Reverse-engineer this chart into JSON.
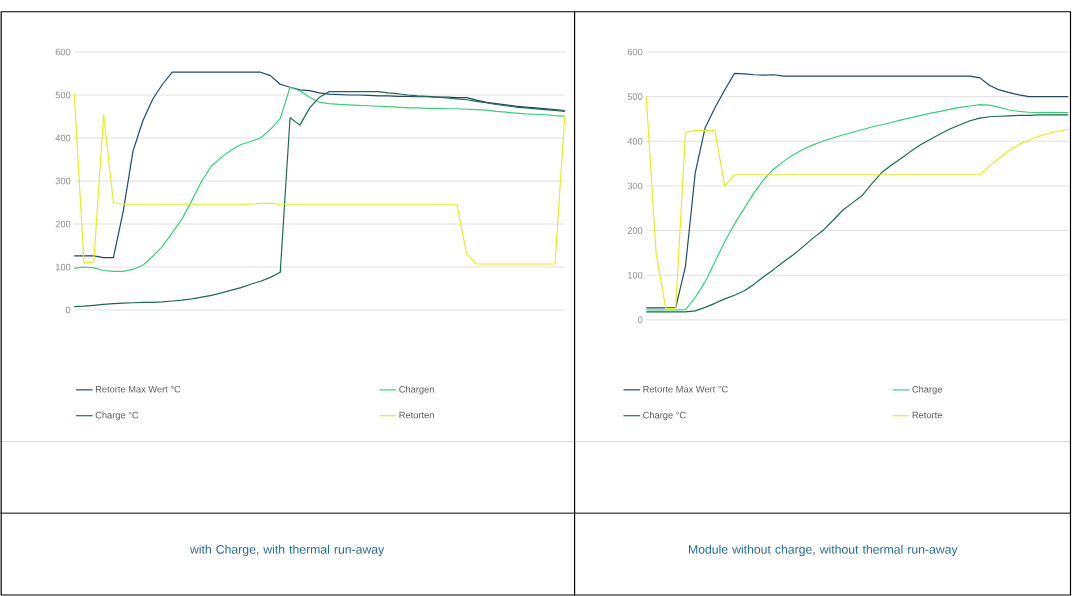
{
  "chart_data": [
    {
      "type": "line",
      "categories": [
        null,
        null,
        null,
        null,
        null,
        null,
        null,
        null,
        null,
        null,
        null,
        null,
        null,
        null,
        null,
        null,
        null,
        null,
        null,
        null,
        null,
        null,
        null,
        null,
        null,
        null,
        null,
        null,
        null,
        null,
        null,
        null,
        null,
        null,
        null,
        null,
        null,
        null,
        null,
        null,
        null,
        null,
        null,
        null,
        null,
        null,
        null,
        null,
        null,
        null,
        null
      ],
      "series": [
        {
          "name": "Retorte Max Wert °C",
          "color": "#1c4966",
          "values": [
            126,
            126,
            126,
            122,
            122,
            230,
            370,
            440,
            490,
            525,
            553,
            553,
            553,
            553,
            553,
            553,
            553,
            553,
            553,
            553,
            545,
            525,
            518,
            512,
            510,
            505,
            502,
            501,
            500,
            500,
            499,
            498,
            498,
            497,
            497,
            496,
            496,
            495,
            495,
            494,
            494,
            488,
            483,
            480,
            477,
            474,
            472,
            470,
            468,
            466,
            464
          ]
        },
        {
          "name": "Chargen",
          "color": "#34d17a",
          "values": [
            97,
            100,
            98,
            92,
            90,
            90,
            95,
            104,
            125,
            148,
            180,
            212,
            255,
            300,
            335,
            355,
            372,
            385,
            392,
            400,
            420,
            445,
            518,
            510,
            495,
            483,
            480,
            478,
            477,
            476,
            475,
            474,
            473,
            472,
            470,
            470,
            469,
            469,
            468,
            468,
            467,
            466,
            465,
            462,
            460,
            458,
            456,
            455,
            454,
            452,
            451
          ]
        },
        {
          "name": "Charge °C",
          "color": "#1a6b4b",
          "values": [
            8,
            9,
            11,
            13,
            15,
            16,
            17,
            18,
            18,
            19,
            21,
            23,
            26,
            30,
            34,
            40,
            46,
            52,
            60,
            67,
            76,
            88,
            447,
            430,
            470,
            495,
            508,
            508,
            508,
            508,
            508,
            508,
            505,
            503,
            500,
            498,
            497,
            495,
            493,
            491,
            489,
            485,
            482,
            478,
            475,
            472,
            470,
            468,
            466,
            464,
            462
          ]
        },
        {
          "name": "Retorten",
          "color": "#e4ef1c",
          "values": [
            505,
            109,
            112,
            455,
            250,
            246,
            246,
            246,
            246,
            246,
            246,
            246,
            246,
            246,
            246,
            246,
            246,
            246,
            246,
            248,
            248,
            246,
            246,
            246,
            246,
            246,
            246,
            246,
            246,
            246,
            246,
            246,
            246,
            246,
            246,
            246,
            246,
            246,
            246,
            246,
            130,
            107,
            107,
            107,
            107,
            107,
            107,
            107,
            107,
            107,
            451
          ]
        }
      ],
      "ylim": [
        0,
        600
      ],
      "yticks": [
        0,
        100,
        200,
        300,
        400,
        500,
        600
      ],
      "grid": "y",
      "legend": "bottom",
      "tick_labels": "y",
      "annotations": [
        "with Charge, with thermal run-away"
      ]
    },
    {
      "type": "line",
      "categories": [
        null,
        null,
        null,
        null,
        null,
        null,
        null,
        null,
        null,
        null,
        null,
        null,
        null,
        null,
        null,
        null,
        null,
        null,
        null,
        null,
        null,
        null,
        null,
        null,
        null,
        null,
        null,
        null,
        null,
        null,
        null,
        null,
        null,
        null,
        null,
        null,
        null,
        null,
        null,
        null,
        null,
        null,
        null,
        null
      ],
      "series": [
        {
          "name": "Retorte Max Wert °C",
          "color": "#1c4966",
          "values": [
            27,
            27,
            27,
            27,
            120,
            330,
            430,
            475,
            515,
            552,
            551,
            549,
            548,
            549,
            546,
            546,
            546,
            546,
            546,
            546,
            546,
            546,
            546,
            546,
            546,
            546,
            546,
            546,
            546,
            546,
            546,
            546,
            546,
            546,
            542,
            525,
            515,
            509,
            504,
            500,
            500,
            500,
            500,
            500
          ]
        },
        {
          "name": "Charge",
          "color": "#34d17a",
          "values": [
            22,
            22,
            22,
            22,
            23,
            50,
            85,
            130,
            175,
            215,
            250,
            285,
            315,
            338,
            355,
            370,
            382,
            392,
            400,
            407,
            414,
            420,
            426,
            432,
            437,
            442,
            448,
            453,
            458,
            463,
            467,
            472,
            476,
            479,
            482,
            481,
            476,
            470,
            467,
            465,
            464,
            464,
            464,
            464
          ]
        },
        {
          "name": "Charge °C",
          "color": "#1a6b4b",
          "values": [
            18,
            18,
            18,
            18,
            18,
            20,
            28,
            37,
            47,
            55,
            65,
            80,
            97,
            113,
            130,
            146,
            164,
            183,
            200,
            222,
            245,
            262,
            278,
            305,
            330,
            347,
            362,
            378,
            393,
            405,
            417,
            428,
            437,
            446,
            452,
            455,
            456,
            457,
            458,
            458,
            459,
            459,
            459,
            459
          ]
        },
        {
          "name": "Retorte",
          "color": "#e4ef1c",
          "values": [
            501,
            150,
            25,
            25,
            420,
            424,
            424,
            424,
            300,
            325,
            325,
            325,
            325,
            325,
            325,
            325,
            325,
            325,
            325,
            325,
            325,
            325,
            325,
            325,
            325,
            325,
            325,
            325,
            325,
            325,
            325,
            325,
            325,
            325,
            325,
            345,
            363,
            380,
            393,
            403,
            411,
            418,
            423,
            427
          ]
        }
      ],
      "ylim": [
        0,
        600
      ],
      "yticks": [
        0,
        100,
        200,
        300,
        400,
        500,
        600
      ],
      "grid": "y",
      "legend": "bottom",
      "tick_labels": "y",
      "annotations": [
        "Module without charge, without thermal run-away"
      ]
    }
  ]
}
